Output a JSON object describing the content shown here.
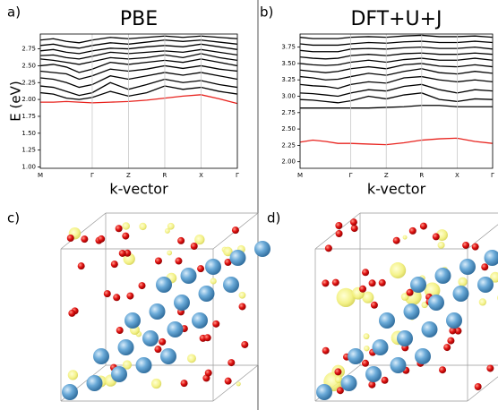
{
  "panels": [
    "a)",
    "b)",
    "c)",
    "d)"
  ],
  "chart_data": [
    {
      "type": "line",
      "title": "PBE",
      "x_label": "k-vector",
      "y_label": "E (eV)",
      "x": [
        0,
        0.36,
        0.72,
        1.07,
        1.43,
        1.93,
        2.43,
        2.93,
        3.43,
        3.93,
        4.43,
        4.93,
        5.43
      ],
      "xlim": [
        0,
        5.43
      ],
      "xticks": [
        {
          "value": 0,
          "label": "M"
        },
        {
          "value": 1.43,
          "label": "Γ"
        },
        {
          "value": 2.43,
          "label": "Z"
        },
        {
          "value": 3.43,
          "label": "R"
        },
        {
          "value": 4.43,
          "label": "X"
        },
        {
          "value": 5.43,
          "label": "Γ"
        }
      ],
      "ylim": [
        0.98,
        2.97
      ],
      "yticks": [
        {
          "value": 1,
          "label": "1.00"
        },
        {
          "value": 1.25,
          "label": "1.25"
        },
        {
          "value": 1.5,
          "label": "1.50"
        },
        {
          "value": 1.75,
          "label": "1.75"
        },
        {
          "value": 2,
          "label": "2.00"
        },
        {
          "value": 2.25,
          "label": "2.25"
        },
        {
          "value": 2.5,
          "label": "2.50"
        },
        {
          "value": 2.75,
          "label": "2.75"
        }
      ],
      "grid": true,
      "series": [
        {
          "color": "#e8231e",
          "values": [
            1.96,
            1.96,
            1.97,
            1.96,
            1.95,
            1.96,
            1.97,
            1.99,
            2.02,
            2.05,
            2.07,
            2.01,
            1.94
          ]
        },
        {
          "color": "#000000",
          "values": [
            2.1,
            2.08,
            2.02,
            2.0,
            2.03,
            2.12,
            2.05,
            2.1,
            2.2,
            2.15,
            2.18,
            2.12,
            2.08
          ]
        },
        {
          "color": "#000000",
          "values": [
            2.2,
            2.18,
            2.12,
            2.06,
            2.1,
            2.25,
            2.15,
            2.22,
            2.3,
            2.25,
            2.28,
            2.22,
            2.18
          ]
        },
        {
          "color": "#000000",
          "values": [
            2.32,
            2.3,
            2.25,
            2.18,
            2.22,
            2.35,
            2.3,
            2.35,
            2.4,
            2.36,
            2.4,
            2.35,
            2.3
          ]
        },
        {
          "color": "#000000",
          "values": [
            2.42,
            2.4,
            2.38,
            2.3,
            2.35,
            2.45,
            2.42,
            2.45,
            2.5,
            2.46,
            2.5,
            2.45,
            2.42
          ]
        },
        {
          "color": "#000000",
          "values": [
            2.5,
            2.52,
            2.48,
            2.4,
            2.45,
            2.55,
            2.52,
            2.55,
            2.58,
            2.55,
            2.6,
            2.55,
            2.5
          ]
        },
        {
          "color": "#000000",
          "values": [
            2.6,
            2.58,
            2.55,
            2.52,
            2.56,
            2.62,
            2.6,
            2.62,
            2.66,
            2.62,
            2.68,
            2.62,
            2.58
          ]
        },
        {
          "color": "#000000",
          "values": [
            2.65,
            2.66,
            2.62,
            2.6,
            2.64,
            2.7,
            2.68,
            2.7,
            2.72,
            2.7,
            2.74,
            2.7,
            2.66
          ]
        },
        {
          "color": "#000000",
          "values": [
            2.72,
            2.74,
            2.7,
            2.68,
            2.72,
            2.76,
            2.75,
            2.78,
            2.8,
            2.78,
            2.82,
            2.78,
            2.74
          ]
        },
        {
          "color": "#000000",
          "values": [
            2.8,
            2.82,
            2.78,
            2.76,
            2.8,
            2.84,
            2.82,
            2.85,
            2.88,
            2.86,
            2.88,
            2.85,
            2.82
          ]
        },
        {
          "color": "#000000",
          "values": [
            2.88,
            2.9,
            2.86,
            2.84,
            2.88,
            2.92,
            2.9,
            2.92,
            2.94,
            2.92,
            2.94,
            2.92,
            2.9
          ]
        }
      ]
    },
    {
      "type": "line",
      "title": "DFT+U+J",
      "x_label": "k-vector",
      "x": [
        0,
        0.36,
        0.72,
        1.07,
        1.43,
        1.93,
        2.43,
        2.93,
        3.43,
        3.93,
        4.43,
        4.93,
        5.43
      ],
      "xlim": [
        0,
        5.43
      ],
      "xticks": [
        {
          "value": 0,
          "label": "M"
        },
        {
          "value": 1.43,
          "label": "Γ"
        },
        {
          "value": 2.43,
          "label": "Z"
        },
        {
          "value": 3.43,
          "label": "R"
        },
        {
          "value": 4.43,
          "label": "X"
        },
        {
          "value": 5.43,
          "label": "Γ"
        }
      ],
      "ylim": [
        1.9,
        3.95
      ],
      "yticks": [
        {
          "value": 2,
          "label": "2.00"
        },
        {
          "value": 2.25,
          "label": "2.25"
        },
        {
          "value": 2.5,
          "label": "2.50"
        },
        {
          "value": 2.75,
          "label": "2.75"
        },
        {
          "value": 3,
          "label": "3.00"
        },
        {
          "value": 3.25,
          "label": "3.25"
        },
        {
          "value": 3.5,
          "label": "3.50"
        },
        {
          "value": 3.75,
          "label": "3.75"
        }
      ],
      "grid": true,
      "series": [
        {
          "color": "#e8231e",
          "values": [
            2.3,
            2.33,
            2.31,
            2.28,
            2.28,
            2.27,
            2.26,
            2.29,
            2.33,
            2.35,
            2.36,
            2.31,
            2.28
          ]
        },
        {
          "color": "#000000",
          "values": [
            2.82,
            2.82,
            2.82,
            2.82,
            2.82,
            2.82,
            2.83,
            2.84,
            2.86,
            2.86,
            2.84,
            2.84,
            2.84
          ]
        },
        {
          "color": "#000000",
          "values": [
            2.95,
            2.94,
            2.92,
            2.9,
            2.93,
            3.0,
            2.96,
            3.02,
            3.05,
            2.95,
            2.92,
            2.96,
            2.95
          ]
        },
        {
          "color": "#000000",
          "values": [
            3.05,
            3.04,
            3.02,
            3.0,
            3.05,
            3.1,
            3.08,
            3.15,
            3.18,
            3.1,
            3.05,
            3.1,
            3.08
          ]
        },
        {
          "color": "#000000",
          "values": [
            3.18,
            3.16,
            3.15,
            3.12,
            3.18,
            3.22,
            3.2,
            3.28,
            3.3,
            3.25,
            3.22,
            3.25,
            3.22
          ]
        },
        {
          "color": "#000000",
          "values": [
            3.3,
            3.28,
            3.25,
            3.26,
            3.3,
            3.35,
            3.32,
            3.38,
            3.42,
            3.36,
            3.34,
            3.38,
            3.35
          ]
        },
        {
          "color": "#000000",
          "values": [
            3.4,
            3.38,
            3.36,
            3.38,
            3.42,
            3.45,
            3.42,
            3.48,
            3.5,
            3.46,
            3.45,
            3.48,
            3.45
          ]
        },
        {
          "color": "#000000",
          "values": [
            3.5,
            3.48,
            3.47,
            3.48,
            3.52,
            3.55,
            3.52,
            3.56,
            3.58,
            3.55,
            3.55,
            3.58,
            3.55
          ]
        },
        {
          "color": "#000000",
          "values": [
            3.6,
            3.58,
            3.57,
            3.58,
            3.62,
            3.64,
            3.62,
            3.65,
            3.66,
            3.64,
            3.64,
            3.66,
            3.64
          ]
        },
        {
          "color": "#000000",
          "values": [
            3.7,
            3.68,
            3.68,
            3.68,
            3.72,
            3.73,
            3.72,
            3.74,
            3.75,
            3.73,
            3.73,
            3.75,
            3.72
          ]
        },
        {
          "color": "#000000",
          "values": [
            3.8,
            3.78,
            3.78,
            3.78,
            3.8,
            3.82,
            3.81,
            3.83,
            3.84,
            3.82,
            3.82,
            3.84,
            3.82
          ]
        },
        {
          "color": "#000000",
          "values": [
            3.9,
            3.88,
            3.88,
            3.88,
            3.9,
            3.91,
            3.9,
            3.92,
            3.93,
            3.91,
            3.91,
            3.92,
            3.9
          ]
        }
      ]
    }
  ]
}
